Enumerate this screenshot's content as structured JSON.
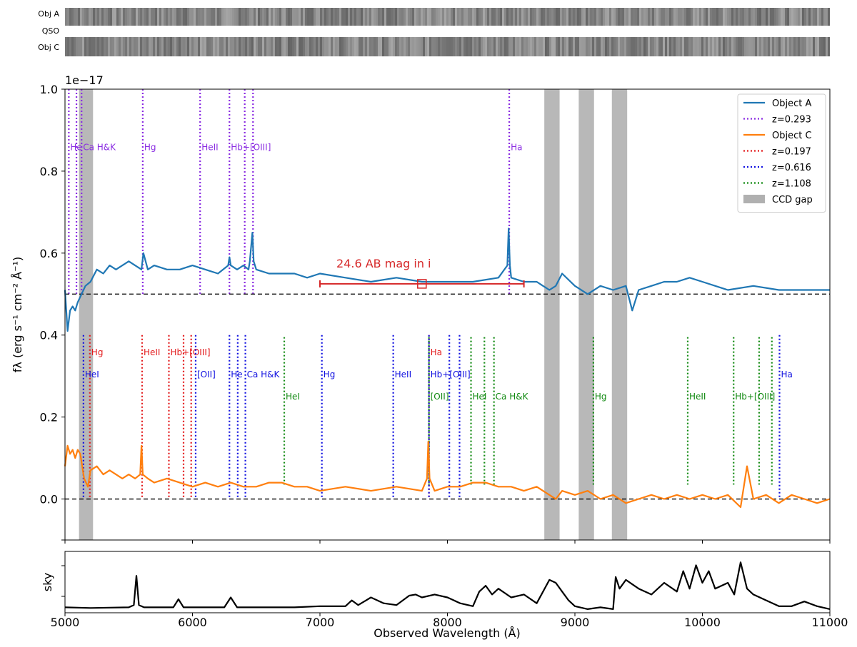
{
  "strip": {
    "labels": [
      "Obj A",
      "QSO",
      "Obj C"
    ],
    "gap_ranges": [
      [
        5100,
        5230
      ],
      [
        8760,
        8880
      ],
      [
        9030,
        9150
      ],
      [
        9290,
        9400
      ]
    ]
  },
  "chart_data": [
    {
      "type": "line",
      "scale_note": "1e−17",
      "ylabel": "fλ (erg s⁻¹ cm⁻² Å⁻¹)",
      "xlabel": "Observed Wavelength (Å)",
      "xlim": [
        5000,
        11000
      ],
      "ylim": [
        -0.1,
        1.0
      ],
      "xticks": [
        5000,
        6000,
        7000,
        8000,
        9000,
        10000,
        11000
      ],
      "yticks": [
        "−0.1",
        "0.0",
        "0.2",
        "0.4",
        "0.6",
        "0.8",
        "1.0"
      ],
      "ytick_values": [
        -0.1,
        0.0,
        0.2,
        0.4,
        0.6,
        0.8,
        1.0
      ],
      "ytick_labels_shown": [
        "0.0",
        "0.2",
        "0.4",
        "0.6",
        "0.8",
        "1.0"
      ],
      "baselines": [
        0.5,
        0.0
      ],
      "ccd_gaps": [
        [
          5110,
          5220
        ],
        [
          8760,
          8880
        ],
        [
          9030,
          9150
        ],
        [
          9290,
          9410
        ]
      ],
      "series": [
        {
          "name": "Object A",
          "color": "#1f77b4",
          "x": [
            5000,
            5020,
            5040,
            5060,
            5080,
            5100,
            5130,
            5160,
            5200,
            5250,
            5300,
            5350,
            5400,
            5450,
            5500,
            5550,
            5600,
            5615,
            5650,
            5700,
            5800,
            5900,
            6000,
            6100,
            6200,
            6280,
            6290,
            6300,
            6350,
            6400,
            6440,
            6450,
            6470,
            6480,
            6500,
            6600,
            6700,
            6800,
            6900,
            7000,
            7200,
            7400,
            7600,
            7800,
            8000,
            8200,
            8400,
            8470,
            8480,
            8490,
            8500,
            8600,
            8700,
            8750,
            8800,
            8850,
            8900,
            9000,
            9100,
            9200,
            9300,
            9400,
            9450,
            9500,
            9600,
            9700,
            9800,
            9900,
            10000,
            10200,
            10400,
            10600,
            10800,
            11000
          ],
          "y": [
            0.51,
            0.41,
            0.46,
            0.47,
            0.46,
            0.48,
            0.5,
            0.52,
            0.53,
            0.56,
            0.55,
            0.57,
            0.56,
            0.57,
            0.58,
            0.57,
            0.56,
            0.6,
            0.56,
            0.57,
            0.56,
            0.56,
            0.57,
            0.56,
            0.55,
            0.57,
            0.59,
            0.57,
            0.56,
            0.57,
            0.56,
            0.58,
            0.65,
            0.58,
            0.56,
            0.55,
            0.55,
            0.55,
            0.54,
            0.55,
            0.54,
            0.53,
            0.54,
            0.53,
            0.53,
            0.53,
            0.54,
            0.57,
            0.66,
            0.57,
            0.54,
            0.53,
            0.53,
            0.52,
            0.51,
            0.52,
            0.55,
            0.52,
            0.5,
            0.52,
            0.51,
            0.52,
            0.46,
            0.51,
            0.52,
            0.53,
            0.53,
            0.54,
            0.53,
            0.51,
            0.52,
            0.51,
            0.51,
            0.51
          ]
        },
        {
          "name": "Object C",
          "color": "#ff7f0e",
          "x": [
            5000,
            5020,
            5040,
            5060,
            5080,
            5100,
            5120,
            5150,
            5180,
            5200,
            5250,
            5300,
            5350,
            5400,
            5450,
            5500,
            5550,
            5590,
            5600,
            5610,
            5650,
            5700,
            5800,
            5900,
            6000,
            6100,
            6200,
            6300,
            6400,
            6500,
            6600,
            6700,
            6800,
            6900,
            7000,
            7200,
            7400,
            7600,
            7800,
            7840,
            7850,
            7860,
            7900,
            8000,
            8100,
            8200,
            8300,
            8400,
            8500,
            8600,
            8700,
            8750,
            8800,
            8850,
            8900,
            9000,
            9100,
            9200,
            9300,
            9400,
            9500,
            9600,
            9700,
            9800,
            9900,
            10000,
            10100,
            10200,
            10300,
            10350,
            10400,
            10500,
            10600,
            10700,
            10800,
            10900,
            11000
          ],
          "y": [
            0.08,
            0.13,
            0.11,
            0.12,
            0.1,
            0.12,
            0.11,
            0.05,
            0.03,
            0.07,
            0.08,
            0.06,
            0.07,
            0.06,
            0.05,
            0.06,
            0.05,
            0.06,
            0.13,
            0.06,
            0.05,
            0.04,
            0.05,
            0.04,
            0.03,
            0.04,
            0.03,
            0.04,
            0.03,
            0.03,
            0.04,
            0.04,
            0.03,
            0.03,
            0.02,
            0.03,
            0.02,
            0.03,
            0.02,
            0.05,
            0.14,
            0.05,
            0.02,
            0.03,
            0.03,
            0.04,
            0.04,
            0.03,
            0.03,
            0.02,
            0.03,
            0.02,
            0.01,
            0.0,
            0.02,
            0.01,
            0.02,
            0.0,
            0.01,
            -0.01,
            0.0,
            0.01,
            0.0,
            0.01,
            0.0,
            0.01,
            0.0,
            0.01,
            -0.02,
            0.08,
            0.0,
            0.01,
            -0.01,
            0.01,
            0.0,
            -0.01,
            0.0
          ]
        }
      ],
      "line_sets": [
        {
          "legend": "z=0.293",
          "color": "#8a2be2",
          "y_top": 1.0,
          "y_bottom": 0.5,
          "lines": [
            {
              "label": "He",
              "x": 5030,
              "label_y": 0.858
            },
            {
              "label": "",
              "x": 5090,
              "label_y": 0.858
            },
            {
              "label": "Ca H&K",
              "x": 5130,
              "label_y": 0.858
            },
            {
              "label": "Hg",
              "x": 5610,
              "label_y": 0.858
            },
            {
              "label": "HeII",
              "x": 6060,
              "label_y": 0.858
            },
            {
              "label": "Hb+[OIII]",
              "x": 6290,
              "label_y": 0.858
            },
            {
              "label": "",
              "x": 6410,
              "label_y": 0.858
            },
            {
              "label": "",
              "x": 6475,
              "label_y": 0.858
            },
            {
              "label": "Ha",
              "x": 8485,
              "label_y": 0.858
            }
          ]
        },
        {
          "legend": "z=0.197",
          "color": "#e31a1c",
          "y_top": 0.4,
          "y_bottom": 0.0,
          "lines": [
            {
              "label": "Hg",
              "x": 5195,
              "label_y": 0.358
            },
            {
              "label": "HeII",
              "x": 5605,
              "label_y": 0.358
            },
            {
              "label": "Hb+[OIII]",
              "x": 5815,
              "label_y": 0.358
            },
            {
              "label": "",
              "x": 5930,
              "label_y": 0.358
            },
            {
              "label": "",
              "x": 5990,
              "label_y": 0.358
            },
            {
              "label": "Ha",
              "x": 7855,
              "label_y": 0.358
            }
          ]
        },
        {
          "legend": "z=0.616",
          "color": "#1010e0",
          "y_top": 0.4,
          "y_bottom": 0.0,
          "lines": [
            {
              "label": "HeI",
              "x": 5145,
              "label_y": 0.304
            },
            {
              "label": "[OII]",
              "x": 6025,
              "label_y": 0.304
            },
            {
              "label": "He",
              "x": 6290,
              "label_y": 0.304
            },
            {
              "label": "",
              "x": 6355,
              "label_y": 0.304
            },
            {
              "label": "Ca H&K",
              "x": 6415,
              "label_y": 0.304
            },
            {
              "label": "Hg",
              "x": 7015,
              "label_y": 0.304
            },
            {
              "label": "HeII",
              "x": 7575,
              "label_y": 0.304
            },
            {
              "label": "Hb+[OIII]",
              "x": 7855,
              "label_y": 0.304
            },
            {
              "label": "",
              "x": 8015,
              "label_y": 0.304
            },
            {
              "label": "",
              "x": 8095,
              "label_y": 0.304
            },
            {
              "label": "Ha",
              "x": 10605,
              "label_y": 0.304
            }
          ]
        },
        {
          "legend": "z=1.108",
          "color": "#128a12",
          "y_top": 0.395,
          "y_bottom": 0.035,
          "lines": [
            {
              "label": "HeI",
              "x": 6720,
              "label_y": 0.25
            },
            {
              "label": "[OII]",
              "x": 7855,
              "label_y": 0.25
            },
            {
              "label": "HeI",
              "x": 8185,
              "label_y": 0.25
            },
            {
              "label": "",
              "x": 8290,
              "label_y": 0.25
            },
            {
              "label": "Ca H&K",
              "x": 8365,
              "label_y": 0.25
            },
            {
              "label": "Hg",
              "x": 9145,
              "label_y": 0.25
            },
            {
              "label": "HeII",
              "x": 9885,
              "label_y": 0.25
            },
            {
              "label": "Hb+[OIII]",
              "x": 10245,
              "label_y": 0.25
            },
            {
              "label": "",
              "x": 10445,
              "label_y": 0.25
            },
            {
              "label": "",
              "x": 10545,
              "label_y": 0.25
            }
          ]
        }
      ],
      "annotation": {
        "text": "24.6 AB mag in i",
        "color": "#d62728",
        "x_range": [
          7000,
          8600
        ],
        "y": 0.525,
        "box_x": 7800,
        "text_x": 7500,
        "text_y": 0.575
      },
      "legend": {
        "placement": "top-right",
        "entries": [
          {
            "label": "Object A",
            "color": "#1f77b4",
            "style": "solid"
          },
          {
            "label": "z=0.293",
            "color": "#8a2be2",
            "style": "dotted"
          },
          {
            "label": "Object C",
            "color": "#ff7f0e",
            "style": "solid"
          },
          {
            "label": "z=0.197",
            "color": "#e31a1c",
            "style": "dotted"
          },
          {
            "label": "z=0.616",
            "color": "#1010e0",
            "style": "dotted"
          },
          {
            "label": "z=1.108",
            "color": "#128a12",
            "style": "dotted"
          },
          {
            "label": "CCD gap",
            "color": "#b0b0b0",
            "style": "patch"
          }
        ]
      }
    },
    {
      "type": "line",
      "ylabel": "sky",
      "xlim": [
        5000,
        11000
      ],
      "series": [
        {
          "name": "sky",
          "color": "#000000",
          "x": [
            5000,
            5200,
            5500,
            5540,
            5560,
            5580,
            5620,
            5850,
            5890,
            5930,
            6250,
            6300,
            6350,
            6800,
            7000,
            7200,
            7250,
            7300,
            7400,
            7500,
            7600,
            7700,
            7750,
            7800,
            7900,
            8000,
            8100,
            8200,
            8250,
            8300,
            8350,
            8400,
            8500,
            8600,
            8700,
            8800,
            8850,
            8900,
            8950,
            9000,
            9100,
            9200,
            9300,
            9320,
            9350,
            9400,
            9500,
            9600,
            9700,
            9800,
            9850,
            9900,
            9950,
            10000,
            10050,
            10100,
            10200,
            10250,
            10300,
            10350,
            10400,
            10500,
            10600,
            10700,
            10800,
            10900,
            11000
          ],
          "y": [
            0.08,
            0.07,
            0.08,
            0.12,
            0.62,
            0.12,
            0.08,
            0.08,
            0.22,
            0.08,
            0.08,
            0.25,
            0.08,
            0.08,
            0.1,
            0.1,
            0.2,
            0.12,
            0.25,
            0.15,
            0.12,
            0.28,
            0.3,
            0.25,
            0.3,
            0.25,
            0.15,
            0.1,
            0.35,
            0.45,
            0.3,
            0.4,
            0.25,
            0.3,
            0.15,
            0.55,
            0.5,
            0.35,
            0.2,
            0.1,
            0.05,
            0.08,
            0.05,
            0.6,
            0.4,
            0.55,
            0.4,
            0.3,
            0.5,
            0.35,
            0.7,
            0.4,
            0.8,
            0.5,
            0.7,
            0.4,
            0.5,
            0.3,
            0.85,
            0.4,
            0.3,
            0.2,
            0.1,
            0.1,
            0.18,
            0.1,
            0.05
          ]
        }
      ]
    }
  ]
}
